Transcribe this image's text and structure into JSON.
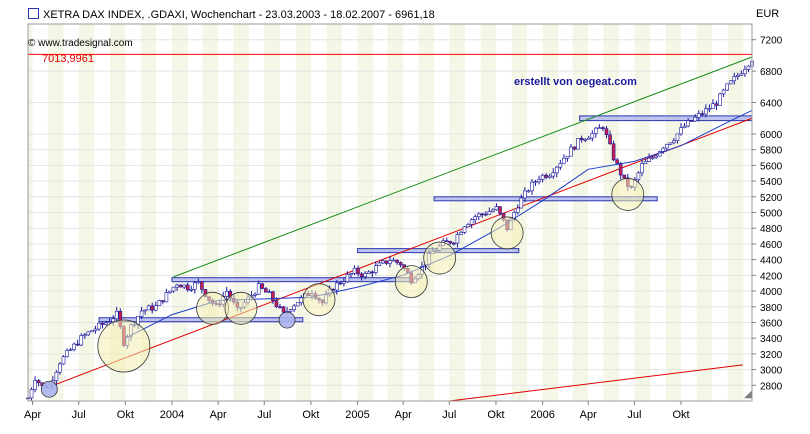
{
  "header": {
    "title": "XETRA DAX INDEX, .GDAXI, Wochenchart - 23.03.2003 - 18.02.2007 - 6961,18",
    "copyright": "© www.tradesignal.com",
    "currency": "EUR",
    "corner_glyph": "◢"
  },
  "annotation": {
    "credit": "erstellt von oegeat.com",
    "level_label": "7013,9961"
  },
  "colors": {
    "background": "#ffffff",
    "band": "#f5f7e6",
    "up_candle": "#ffffff",
    "down_candle": "#c81e4a",
    "wick": "#1a1a9e",
    "ma": "#1e3cc8",
    "upper_trend": "#1a8c1a",
    "lower_trend": "#e00000",
    "hline": "#ff0000",
    "zone_fill": "#aab2ee",
    "zone_stroke": "#2a36b0",
    "circle_fill": "#f3eeb0",
    "text_blue": "#1a1a9e"
  },
  "chart_data": {
    "type": "candlestick",
    "title": "XETRA DAX INDEX, .GDAXI, Wochenchart - 23.03.2003 - 18.02.2007 - 6961,18",
    "x_axis": {
      "type": "date",
      "range": [
        "2003-03-23",
        "2007-02-18"
      ],
      "tick_labels": [
        {
          "date": "2003-04-01",
          "label": "Apr"
        },
        {
          "date": "2003-07-01",
          "label": "Jul"
        },
        {
          "date": "2003-10-01",
          "label": "Okt"
        },
        {
          "date": "2004-01-01",
          "label": "2004"
        },
        {
          "date": "2004-04-01",
          "label": "Apr"
        },
        {
          "date": "2004-07-01",
          "label": "Jul"
        },
        {
          "date": "2004-10-01",
          "label": "Okt"
        },
        {
          "date": "2005-01-01",
          "label": "2005"
        },
        {
          "date": "2005-04-01",
          "label": "Apr"
        },
        {
          "date": "2005-07-01",
          "label": "Jul"
        },
        {
          "date": "2005-10-01",
          "label": "Okt"
        },
        {
          "date": "2006-01-01",
          "label": "2006"
        },
        {
          "date": "2006-04-01",
          "label": "Apr"
        },
        {
          "date": "2006-07-01",
          "label": "Jul"
        },
        {
          "date": "2006-10-01",
          "label": "Okt"
        }
      ]
    },
    "y_axis": {
      "unit": "EUR",
      "ylim": [
        2600,
        7400
      ],
      "ticks": [
        2800,
        3000,
        3200,
        3400,
        3600,
        3800,
        4000,
        4200,
        4400,
        4600,
        4800,
        5000,
        5200,
        5400,
        5600,
        5800,
        6000,
        6400,
        6800,
        7200
      ],
      "tick_labels": [
        "2800",
        "3000",
        "3200",
        "3400",
        "3600",
        "3800",
        "4000",
        "4200",
        "4400",
        "4600",
        "4800",
        "5000",
        "5200",
        "5400",
        "5600",
        "5800",
        "6000",
        "6400",
        "6800",
        "7200"
      ]
    },
    "close_path": [
      [
        "2003-03-23",
        2640
      ],
      [
        "2003-04-06",
        2900
      ],
      [
        "2003-04-20",
        2780
      ],
      [
        "2003-05-04",
        2800
      ],
      [
        "2003-05-25",
        3100
      ],
      [
        "2003-06-15",
        3250
      ],
      [
        "2003-07-06",
        3400
      ],
      [
        "2003-07-27",
        3500
      ],
      [
        "2003-08-24",
        3600
      ],
      [
        "2003-09-14",
        3700
      ],
      [
        "2003-09-28",
        3350
      ],
      [
        "2003-10-12",
        3550
      ],
      [
        "2003-11-02",
        3750
      ],
      [
        "2003-11-30",
        3800
      ],
      [
        "2003-12-21",
        3950
      ],
      [
        "2004-01-11",
        4100
      ],
      [
        "2004-02-01",
        4050
      ],
      [
        "2004-02-22",
        4100
      ],
      [
        "2004-03-14",
        3900
      ],
      [
        "2004-03-28",
        3800
      ],
      [
        "2004-04-18",
        4000
      ],
      [
        "2004-05-09",
        3750
      ],
      [
        "2004-05-30",
        3900
      ],
      [
        "2004-06-20",
        4050
      ],
      [
        "2004-07-11",
        3950
      ],
      [
        "2004-08-08",
        3700
      ],
      [
        "2004-08-22",
        3800
      ],
      [
        "2004-09-12",
        3900
      ],
      [
        "2004-10-03",
        4000
      ],
      [
        "2004-10-24",
        3850
      ],
      [
        "2004-11-14",
        4050
      ],
      [
        "2004-12-05",
        4150
      ],
      [
        "2004-12-26",
        4250
      ],
      [
        "2005-01-16",
        4200
      ],
      [
        "2005-02-06",
        4300
      ],
      [
        "2005-03-06",
        4400
      ],
      [
        "2005-03-27",
        4350
      ],
      [
        "2005-04-17",
        4150
      ],
      [
        "2005-05-08",
        4300
      ],
      [
        "2005-05-29",
        4500
      ],
      [
        "2005-06-19",
        4600
      ],
      [
        "2005-07-10",
        4650
      ],
      [
        "2005-07-31",
        4850
      ],
      [
        "2005-08-21",
        4950
      ],
      [
        "2005-09-11",
        5000
      ],
      [
        "2005-10-02",
        5050
      ],
      [
        "2005-10-23",
        4800
      ],
      [
        "2005-11-13",
        5100
      ],
      [
        "2005-12-04",
        5300
      ],
      [
        "2005-12-25",
        5450
      ],
      [
        "2006-01-15",
        5500
      ],
      [
        "2006-02-05",
        5650
      ],
      [
        "2006-02-26",
        5800
      ],
      [
        "2006-03-19",
        5950
      ],
      [
        "2006-04-09",
        6000
      ],
      [
        "2006-04-30",
        6100
      ],
      [
        "2006-05-21",
        5700
      ],
      [
        "2006-06-11",
        5400
      ],
      [
        "2006-06-25",
        5300
      ],
      [
        "2006-07-16",
        5600
      ],
      [
        "2006-08-06",
        5700
      ],
      [
        "2006-08-27",
        5850
      ],
      [
        "2006-09-17",
        5950
      ],
      [
        "2006-10-08",
        6100
      ],
      [
        "2006-10-29",
        6200
      ],
      [
        "2006-11-19",
        6300
      ],
      [
        "2006-12-10",
        6400
      ],
      [
        "2006-12-31",
        6600
      ],
      [
        "2007-01-21",
        6750
      ],
      [
        "2007-02-18",
        6961
      ]
    ],
    "moving_average": [
      [
        "2003-10-01",
        3400
      ],
      [
        "2004-01-01",
        3700
      ],
      [
        "2004-04-01",
        3880
      ],
      [
        "2004-07-01",
        3900
      ],
      [
        "2004-10-01",
        3920
      ],
      [
        "2005-01-01",
        4050
      ],
      [
        "2005-04-01",
        4200
      ],
      [
        "2005-07-01",
        4450
      ],
      [
        "2005-10-01",
        4780
      ],
      [
        "2006-01-01",
        5150
      ],
      [
        "2006-04-01",
        5550
      ],
      [
        "2006-07-01",
        5650
      ],
      [
        "2006-10-01",
        5850
      ],
      [
        "2007-01-01",
        6150
      ],
      [
        "2007-02-18",
        6300
      ]
    ],
    "trendlines": [
      {
        "name": "upper",
        "from": [
          "2004-01-04",
          4180
        ],
        "to": [
          "2007-02-18",
          6980
        ]
      },
      {
        "name": "lower",
        "from": [
          "2003-05-04",
          2780
        ],
        "to": [
          "2007-02-18",
          6200
        ]
      },
      {
        "name": "lower-parallel",
        "from": [
          "2005-07-01",
          2600
        ],
        "to": [
          "2007-01-31",
          3060
        ]
      }
    ],
    "horizontal_lines": [
      {
        "value": 7013.9961,
        "label": "7013,9961"
      }
    ],
    "zones": [
      {
        "from": "2003-08-10",
        "to": "2004-09-15",
        "low": 3620,
        "high": 3660
      },
      {
        "from": "2004-01-01",
        "to": "2005-04-15",
        "low": 4130,
        "high": 4170
      },
      {
        "from": "2005-01-01",
        "to": "2005-11-15",
        "low": 4500,
        "high": 4540
      },
      {
        "from": "2005-06-01",
        "to": "2006-08-15",
        "low": 5160,
        "high": 5200
      },
      {
        "from": "2006-03-15",
        "to": "2007-02-18",
        "low": 6170,
        "high": 6230
      }
    ],
    "circles": [
      {
        "date": "2003-05-04",
        "value": 2750,
        "size": "small",
        "filled": true
      },
      {
        "date": "2003-09-28",
        "value": 3300,
        "size": "large",
        "filled": false
      },
      {
        "date": "2004-03-21",
        "value": 3780,
        "size": "medium",
        "filled": false
      },
      {
        "date": "2004-05-16",
        "value": 3780,
        "size": "medium",
        "filled": false
      },
      {
        "date": "2004-08-15",
        "value": 3630,
        "size": "small",
        "filled": true
      },
      {
        "date": "2004-10-17",
        "value": 3890,
        "size": "medium",
        "filled": false
      },
      {
        "date": "2005-04-17",
        "value": 4120,
        "size": "medium",
        "filled": false
      },
      {
        "date": "2005-06-12",
        "value": 4420,
        "size": "medium",
        "filled": false
      },
      {
        "date": "2005-10-23",
        "value": 4740,
        "size": "medium",
        "filled": false
      },
      {
        "date": "2006-06-18",
        "value": 5230,
        "size": "medium",
        "filled": false
      }
    ]
  }
}
